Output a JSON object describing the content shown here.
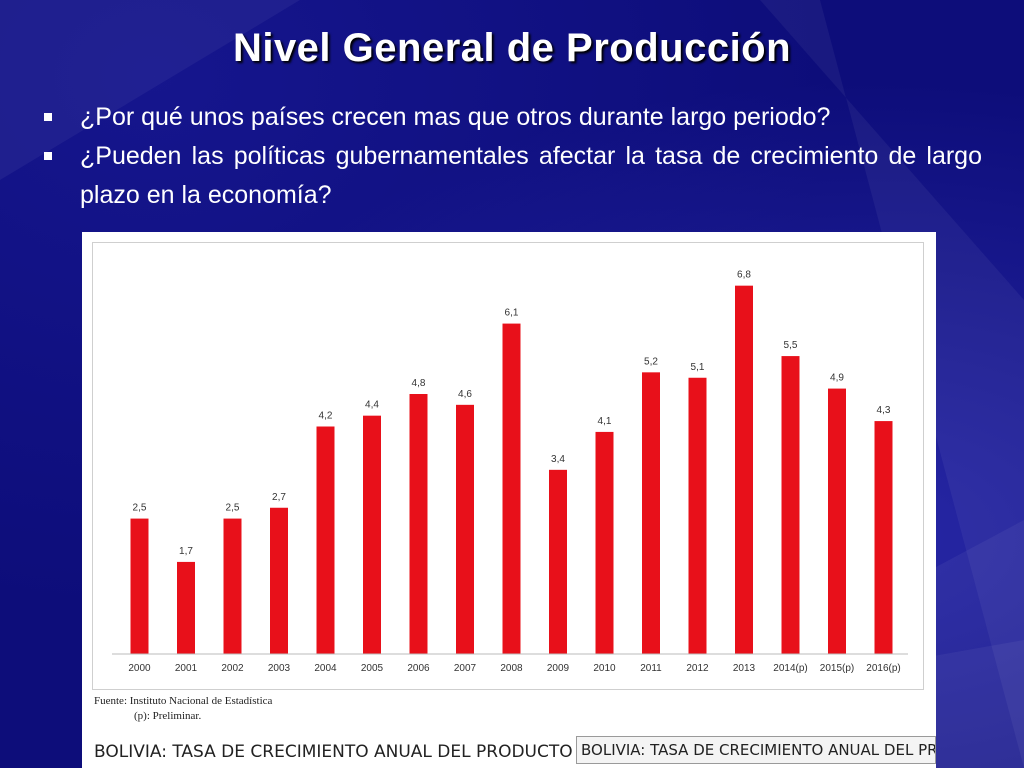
{
  "slide": {
    "title": "Nivel General de Producción",
    "bullets": [
      "¿Por qué unos países crecen mas que otros durante largo periodo?",
      "¿Pueden las políticas gubernamentales afectar la tasa de crecimiento de largo plazo en la economía?"
    ]
  },
  "figure": {
    "source_line": "Fuente: Instituto Nacional de Estadística",
    "note_line": "(p): Preliminar.",
    "caption_truncated": "BOLIVIA: TASA DE CRECIMIENTO ANUAL DEL PRODUCTO",
    "caption_box_text": "BOLIVIA: TASA DE CRECIMIENTO ANUAL DEL PRO"
  },
  "colors": {
    "background": "#0d0d7a",
    "bar": "#e8101a"
  },
  "chart_data": {
    "type": "bar",
    "categories": [
      "2000",
      "2001",
      "2002",
      "2003",
      "2004",
      "2005",
      "2006",
      "2007",
      "2008",
      "2009",
      "2010",
      "2011",
      "2012",
      "2013",
      "2014(p)",
      "2015(p)",
      "2016(p)"
    ],
    "values": [
      2.5,
      1.7,
      2.5,
      2.7,
      4.2,
      4.4,
      4.8,
      4.6,
      6.1,
      3.4,
      4.1,
      5.2,
      5.1,
      6.8,
      5.5,
      4.9,
      4.3
    ],
    "value_labels": [
      "2,5",
      "1,7",
      "2,5",
      "2,7",
      "4,2",
      "4,4",
      "4,8",
      "4,6",
      "6,1",
      "3,4",
      "4,1",
      "5,2",
      "5,1",
      "6,8",
      "5,5",
      "4,9",
      "4,3"
    ],
    "title": "",
    "xlabel": "",
    "ylabel": "",
    "ylim": [
      0,
      7.2
    ],
    "grid": false,
    "legend": "none"
  }
}
